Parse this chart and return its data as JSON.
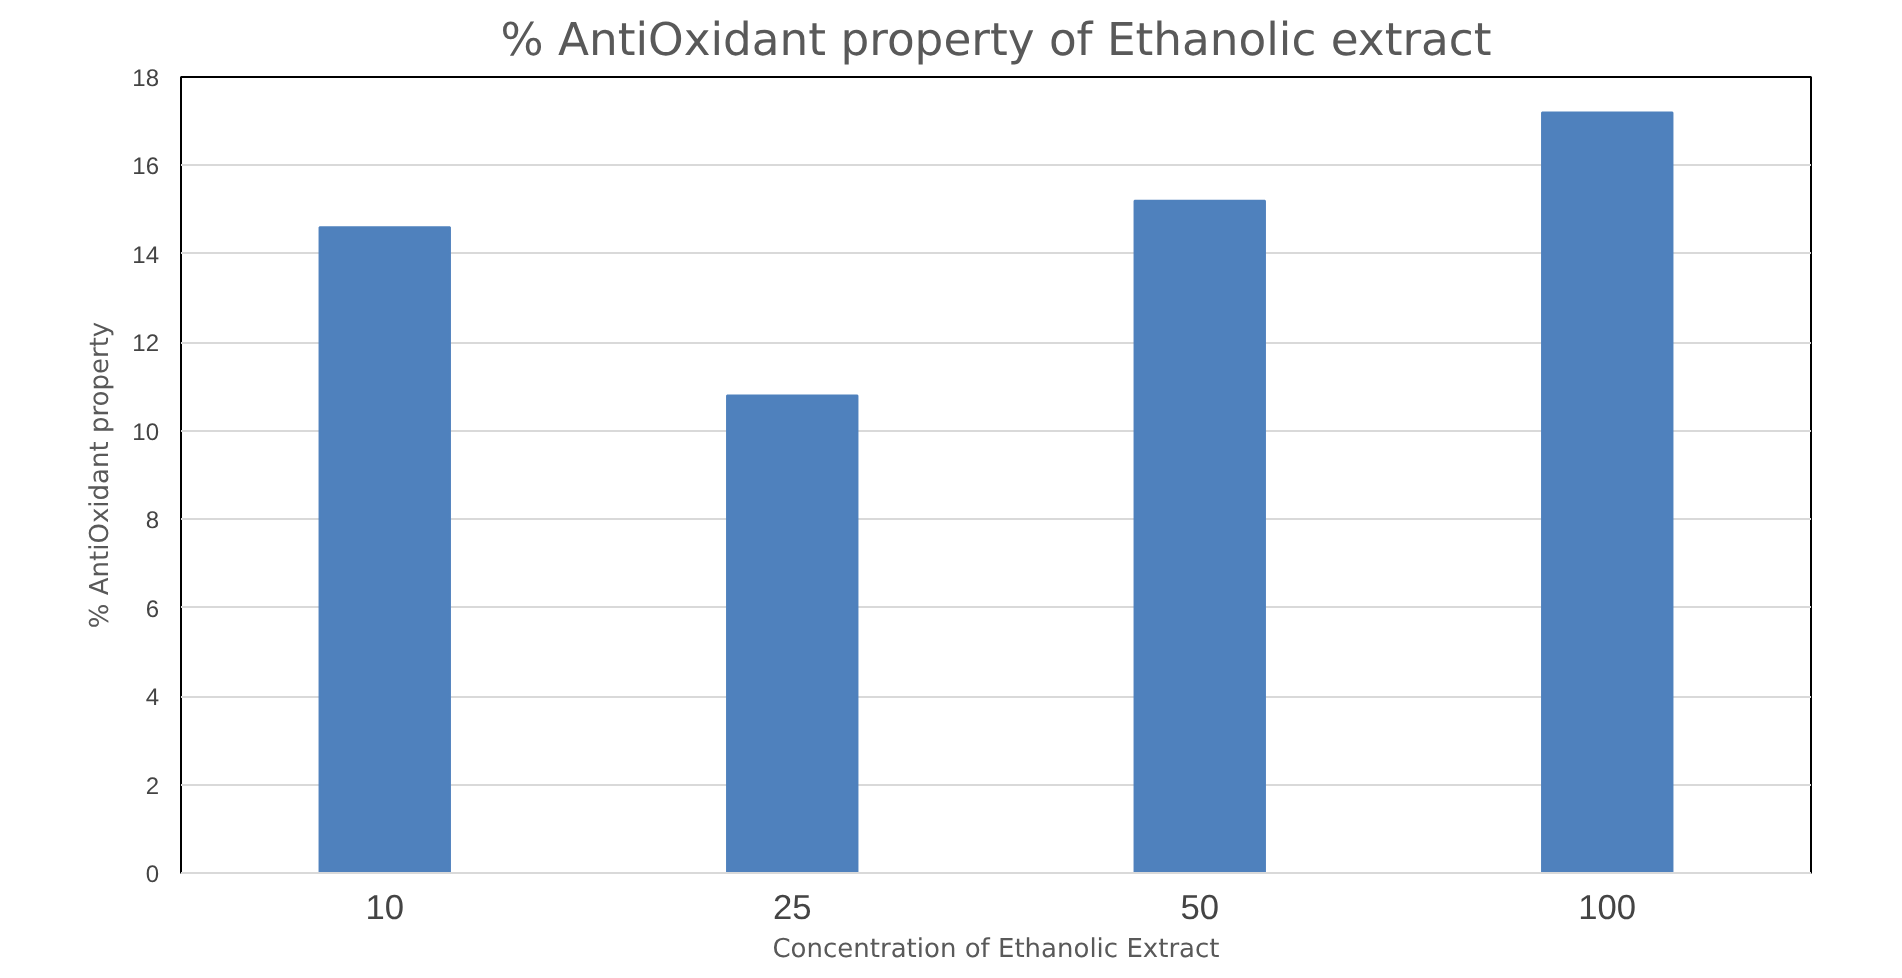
{
  "chart_data": {
    "type": "bar",
    "title": "% AntiOxidant property of Ethanolic extract",
    "xlabel": "Concentration of Ethanolic Extract",
    "ylabel": "% AntiOxidant property",
    "categories": [
      "10",
      "25",
      "50",
      "100"
    ],
    "values": [
      14.6,
      10.8,
      15.2,
      17.2
    ],
    "color": "#4f81bd",
    "ylim": [
      0,
      18
    ],
    "yticks": [
      0,
      2,
      4,
      6,
      8,
      10,
      12,
      14,
      16,
      18
    ],
    "grid": "y"
  }
}
